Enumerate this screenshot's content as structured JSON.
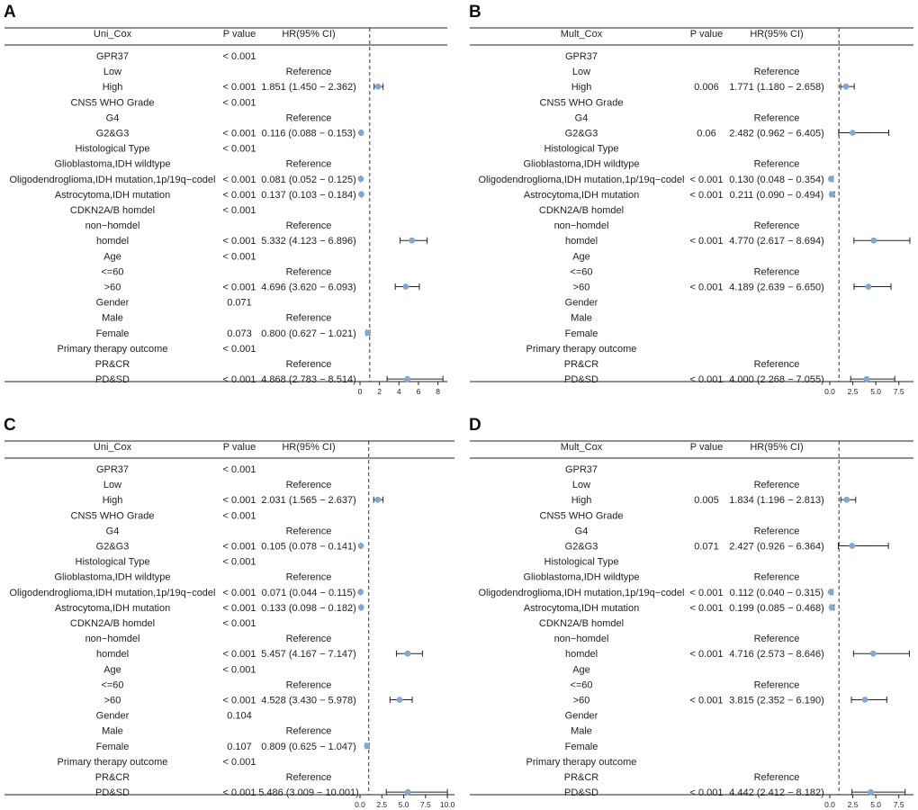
{
  "chart_data": [
    {
      "panel": "A",
      "type": "forest",
      "header": {
        "variable": "Uni_Cox",
        "p": "P value",
        "hr": "HR(95% CI)"
      },
      "xlim": [
        0,
        8.5
      ],
      "ticks": [
        0,
        2,
        4,
        6,
        8
      ],
      "tick_labels": [
        "0",
        "2",
        "4",
        "6",
        "8"
      ],
      "rows": [
        {
          "label": "GPR37",
          "p": "< 0.001",
          "hr_text": ""
        },
        {
          "label": "Low",
          "p": "",
          "hr_text": "Reference"
        },
        {
          "label": "High",
          "p": "< 0.001",
          "hr_text": "1.851 (1.450 − 2.362)",
          "hr": 1.851,
          "lo": 1.45,
          "hi": 2.362
        },
        {
          "label": "CNS5 WHO Grade",
          "p": "< 0.001",
          "hr_text": ""
        },
        {
          "label": "G4",
          "p": "",
          "hr_text": "Reference"
        },
        {
          "label": "G2&G3",
          "p": "< 0.001",
          "hr_text": "0.116 (0.088 − 0.153)",
          "hr": 0.116,
          "lo": 0.088,
          "hi": 0.153
        },
        {
          "label": "Histological Type",
          "p": "< 0.001",
          "hr_text": ""
        },
        {
          "label": "Glioblastoma,IDH wildtype",
          "p": "",
          "hr_text": "Reference"
        },
        {
          "label": "Oligodendroglioma,IDH mutation,1p/19q−codel",
          "p": "< 0.001",
          "hr_text": "0.081 (0.052 − 0.125)",
          "hr": 0.081,
          "lo": 0.052,
          "hi": 0.125
        },
        {
          "label": "Astrocytoma,IDH mutation",
          "p": "< 0.001",
          "hr_text": "0.137 (0.103 − 0.184)",
          "hr": 0.137,
          "lo": 0.103,
          "hi": 0.184
        },
        {
          "label": "CDKN2A/B homdel",
          "p": "< 0.001",
          "hr_text": ""
        },
        {
          "label": "non−homdel",
          "p": "",
          "hr_text": "Reference"
        },
        {
          "label": "homdel",
          "p": "< 0.001",
          "hr_text": "5.332 (4.123 − 6.896)",
          "hr": 5.332,
          "lo": 4.123,
          "hi": 6.896
        },
        {
          "label": "Age",
          "p": "< 0.001",
          "hr_text": ""
        },
        {
          "label": "<=60",
          "p": "",
          "hr_text": "Reference"
        },
        {
          "label": ">60",
          "p": "< 0.001",
          "hr_text": "4.696 (3.620 − 6.093)",
          "hr": 4.696,
          "lo": 3.62,
          "hi": 6.093
        },
        {
          "label": "Gender",
          "p": "0.071",
          "hr_text": ""
        },
        {
          "label": "Male",
          "p": "",
          "hr_text": "Reference"
        },
        {
          "label": "Female",
          "p": "0.073",
          "hr_text": "0.800 (0.627 − 1.021)",
          "hr": 0.8,
          "lo": 0.627,
          "hi": 1.021
        },
        {
          "label": "Primary therapy outcome",
          "p": "< 0.001",
          "hr_text": ""
        },
        {
          "label": "PR&CR",
          "p": "",
          "hr_text": "Reference"
        },
        {
          "label": "PD&SD",
          "p": "< 0.001",
          "hr_text": "4.868 (2.783 − 8.514)",
          "hr": 4.868,
          "lo": 2.783,
          "hi": 8.514
        }
      ]
    },
    {
      "panel": "B",
      "type": "forest",
      "header": {
        "variable": "Mult_Cox",
        "p": "P value",
        "hr": "HR(95% CI)"
      },
      "xlim": [
        0,
        8.8
      ],
      "ticks": [
        0,
        2.5,
        5,
        7.5
      ],
      "tick_labels": [
        "0.0",
        "2.5",
        "5.0",
        "7.5"
      ],
      "rows": [
        {
          "label": "GPR37",
          "p": "",
          "hr_text": ""
        },
        {
          "label": "Low",
          "p": "",
          "hr_text": "Reference"
        },
        {
          "label": "High",
          "p": "0.006",
          "hr_text": "1.771 (1.180 − 2.658)",
          "hr": 1.771,
          "lo": 1.18,
          "hi": 2.658
        },
        {
          "label": "CNS5 WHO Grade",
          "p": "",
          "hr_text": ""
        },
        {
          "label": "G4",
          "p": "",
          "hr_text": "Reference"
        },
        {
          "label": "G2&G3",
          "p": "0.06",
          "hr_text": "2.482 (0.962 − 6.405)",
          "hr": 2.482,
          "lo": 0.962,
          "hi": 6.405
        },
        {
          "label": "Histological Type",
          "p": "",
          "hr_text": ""
        },
        {
          "label": "Glioblastoma,IDH wildtype",
          "p": "",
          "hr_text": "Reference"
        },
        {
          "label": "Oligodendroglioma,IDH mutation,1p/19q−codel",
          "p": "< 0.001",
          "hr_text": "0.130 (0.048 − 0.354)",
          "hr": 0.13,
          "lo": 0.048,
          "hi": 0.354
        },
        {
          "label": "Astrocytoma,IDH mutation",
          "p": "< 0.001",
          "hr_text": "0.211 (0.090 − 0.494)",
          "hr": 0.211,
          "lo": 0.09,
          "hi": 0.494
        },
        {
          "label": "CDKN2A/B homdel",
          "p": "",
          "hr_text": ""
        },
        {
          "label": "non−homdel",
          "p": "",
          "hr_text": "Reference"
        },
        {
          "label": "homdel",
          "p": "< 0.001",
          "hr_text": "4.770 (2.617 − 8.694)",
          "hr": 4.77,
          "lo": 2.617,
          "hi": 8.694
        },
        {
          "label": "Age",
          "p": "",
          "hr_text": ""
        },
        {
          "label": "<=60",
          "p": "",
          "hr_text": "Reference"
        },
        {
          "label": ">60",
          "p": "< 0.001",
          "hr_text": "4.189 (2.639 − 6.650)",
          "hr": 4.189,
          "lo": 2.639,
          "hi": 6.65
        },
        {
          "label": "Gender",
          "p": "",
          "hr_text": ""
        },
        {
          "label": "Male",
          "p": "",
          "hr_text": ""
        },
        {
          "label": "Female",
          "p": "",
          "hr_text": ""
        },
        {
          "label": "Primary therapy outcome",
          "p": "",
          "hr_text": ""
        },
        {
          "label": "PR&CR",
          "p": "",
          "hr_text": "Reference"
        },
        {
          "label": "PD&SD",
          "p": "< 0.001",
          "hr_text": "4.000 (2.268 − 7.055)",
          "hr": 4.0,
          "lo": 2.268,
          "hi": 7.055
        }
      ]
    },
    {
      "panel": "C",
      "type": "forest",
      "header": {
        "variable": "Uni_Cox",
        "p": "P value",
        "hr": "HR(95% CI)"
      },
      "xlim": [
        0,
        10.3
      ],
      "ticks": [
        0,
        2.5,
        5,
        7.5,
        10
      ],
      "tick_labels": [
        "0.0",
        "2.5",
        "5.0",
        "7.5",
        "10.0"
      ],
      "rows": [
        {
          "label": "GPR37",
          "p": "< 0.001",
          "hr_text": ""
        },
        {
          "label": "Low",
          "p": "",
          "hr_text": "Reference"
        },
        {
          "label": "High",
          "p": "< 0.001",
          "hr_text": "2.031 (1.565 − 2.637)",
          "hr": 2.031,
          "lo": 1.565,
          "hi": 2.637
        },
        {
          "label": "CNS5 WHO Grade",
          "p": "< 0.001",
          "hr_text": ""
        },
        {
          "label": "G4",
          "p": "",
          "hr_text": "Reference"
        },
        {
          "label": "G2&G3",
          "p": "< 0.001",
          "hr_text": "0.105 (0.078 − 0.141)",
          "hr": 0.105,
          "lo": 0.078,
          "hi": 0.141
        },
        {
          "label": "Histological Type",
          "p": "< 0.001",
          "hr_text": ""
        },
        {
          "label": "Glioblastoma,IDH wildtype",
          "p": "",
          "hr_text": "Reference"
        },
        {
          "label": "Oligodendroglioma,IDH mutation,1p/19q−codel",
          "p": "< 0.001",
          "hr_text": "0.071 (0.044 − 0.115)",
          "hr": 0.071,
          "lo": 0.044,
          "hi": 0.115
        },
        {
          "label": "Astrocytoma,IDH mutation",
          "p": "< 0.001",
          "hr_text": "0.133 (0.098 − 0.182)",
          "hr": 0.133,
          "lo": 0.098,
          "hi": 0.182
        },
        {
          "label": "CDKN2A/B homdel",
          "p": "< 0.001",
          "hr_text": ""
        },
        {
          "label": "non−homdel",
          "p": "",
          "hr_text": "Reference"
        },
        {
          "label": "homdel",
          "p": "< 0.001",
          "hr_text": "5.457 (4.167 − 7.147)",
          "hr": 5.457,
          "lo": 4.167,
          "hi": 7.147
        },
        {
          "label": "Age",
          "p": "< 0.001",
          "hr_text": ""
        },
        {
          "label": "<=60",
          "p": "",
          "hr_text": "Reference"
        },
        {
          "label": ">60",
          "p": "< 0.001",
          "hr_text": "4.528 (3.430 − 5.978)",
          "hr": 4.528,
          "lo": 3.43,
          "hi": 5.978
        },
        {
          "label": "Gender",
          "p": "0.104",
          "hr_text": ""
        },
        {
          "label": "Male",
          "p": "",
          "hr_text": "Reference"
        },
        {
          "label": "Female",
          "p": "0.107",
          "hr_text": "0.809 (0.625 − 1.047)",
          "hr": 0.809,
          "lo": 0.625,
          "hi": 1.047
        },
        {
          "label": "Primary therapy outcome",
          "p": "< 0.001",
          "hr_text": ""
        },
        {
          "label": "PR&CR",
          "p": "",
          "hr_text": "Reference"
        },
        {
          "label": "PD&SD",
          "p": "< 0.001",
          "hr_text": "5.486 (3.009 − 10.001)",
          "hr": 5.486,
          "lo": 3.009,
          "hi": 10.001
        }
      ]
    },
    {
      "panel": "D",
      "type": "forest",
      "header": {
        "variable": "Mult_Cox",
        "p": "P value",
        "hr": "HR(95% CI)"
      },
      "xlim": [
        0,
        8.8
      ],
      "ticks": [
        0,
        2.5,
        5,
        7.5
      ],
      "tick_labels": [
        "0.0",
        "2.5",
        "5.0",
        "7.5"
      ],
      "rows": [
        {
          "label": "GPR37",
          "p": "",
          "hr_text": ""
        },
        {
          "label": "Low",
          "p": "",
          "hr_text": "Reference"
        },
        {
          "label": "High",
          "p": "0.005",
          "hr_text": "1.834 (1.196 − 2.813)",
          "hr": 1.834,
          "lo": 1.196,
          "hi": 2.813
        },
        {
          "label": "CNS5 WHO Grade",
          "p": "",
          "hr_text": ""
        },
        {
          "label": "G4",
          "p": "",
          "hr_text": "Reference"
        },
        {
          "label": "G2&G3",
          "p": "0.071",
          "hr_text": "2.427 (0.926 − 6.364)",
          "hr": 2.427,
          "lo": 0.926,
          "hi": 6.364
        },
        {
          "label": "Histological Type",
          "p": "",
          "hr_text": ""
        },
        {
          "label": "Glioblastoma,IDH wildtype",
          "p": "",
          "hr_text": "Reference"
        },
        {
          "label": "Oligodendroglioma,IDH mutation,1p/19q−codel",
          "p": "< 0.001",
          "hr_text": "0.112 (0.040 − 0.315)",
          "hr": 0.112,
          "lo": 0.04,
          "hi": 0.315
        },
        {
          "label": "Astrocytoma,IDH mutation",
          "p": "< 0.001",
          "hr_text": "0.199 (0.085 − 0.468)",
          "hr": 0.199,
          "lo": 0.085,
          "hi": 0.468
        },
        {
          "label": "CDKN2A/B homdel",
          "p": "",
          "hr_text": ""
        },
        {
          "label": "non−homdel",
          "p": "",
          "hr_text": "Reference"
        },
        {
          "label": "homdel",
          "p": "< 0.001",
          "hr_text": "4.716 (2.573 − 8.646)",
          "hr": 4.716,
          "lo": 2.573,
          "hi": 8.646
        },
        {
          "label": "Age",
          "p": "",
          "hr_text": ""
        },
        {
          "label": "<=60",
          "p": "",
          "hr_text": "Reference"
        },
        {
          "label": ">60",
          "p": "< 0.001",
          "hr_text": "3.815 (2.352 − 6.190)",
          "hr": 3.815,
          "lo": 2.352,
          "hi": 6.19
        },
        {
          "label": "Gender",
          "p": "",
          "hr_text": ""
        },
        {
          "label": "Male",
          "p": "",
          "hr_text": ""
        },
        {
          "label": "Female",
          "p": "",
          "hr_text": ""
        },
        {
          "label": "Primary therapy outcome",
          "p": "",
          "hr_text": ""
        },
        {
          "label": "PR&CR",
          "p": "",
          "hr_text": "Reference"
        },
        {
          "label": "PD&SD",
          "p": "< 0.001",
          "hr_text": "4.442 (2.412 − 8.182)",
          "hr": 4.442,
          "lo": 2.412,
          "hi": 8.182
        }
      ]
    }
  ]
}
